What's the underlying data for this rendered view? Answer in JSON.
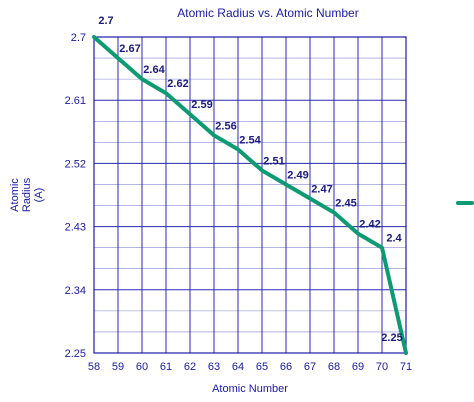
{
  "chart_data": {
    "type": "line",
    "title": "Atomic Radius vs. Atomic Number",
    "xlabel": "Atomic Number",
    "ylabel_lines": [
      "Atomic",
      "Radius",
      "(A)"
    ],
    "x": [
      58,
      59,
      60,
      61,
      62,
      63,
      64,
      65,
      66,
      67,
      68,
      69,
      70,
      71
    ],
    "series": [
      {
        "name": "",
        "values": [
          2.7,
          2.67,
          2.64,
          2.62,
          2.59,
          2.56,
          2.54,
          2.51,
          2.49,
          2.47,
          2.45,
          2.42,
          2.4,
          2.25
        ],
        "color": "#0e9b74"
      }
    ],
    "data_labels": [
      "2.7",
      "2.67",
      "2.64",
      "2.62",
      "2.59",
      "2.56",
      "2.54",
      "2.51",
      "2.49",
      "2.47",
      "2.45",
      "2.42",
      "2.4",
      "2.25"
    ],
    "xlim": [
      58,
      71
    ],
    "ylim": [
      2.25,
      2.7
    ],
    "y_ticks": [
      "2.7",
      "2.61",
      "2.52",
      "2.43",
      "2.34",
      "2.25"
    ],
    "grid": true,
    "legend": "right, no text",
    "colors": {
      "axis": "#1a1aa6",
      "grid": "#2a2ab0",
      "line": "#0e9b74",
      "label": "#1a1a80"
    }
  }
}
